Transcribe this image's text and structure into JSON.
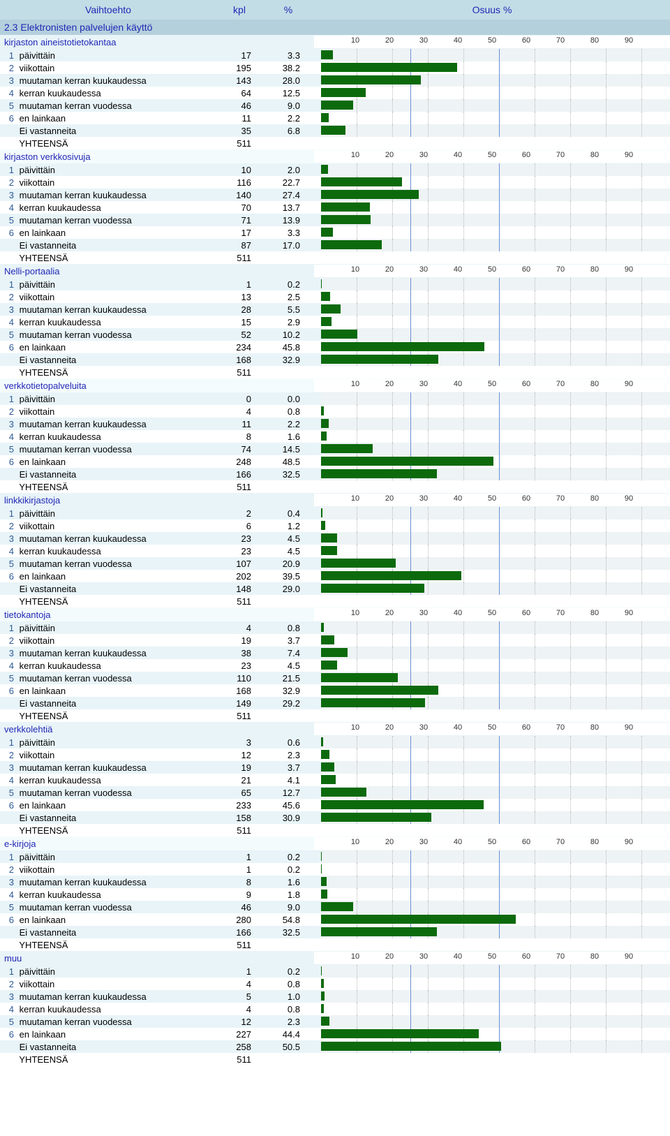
{
  "columns": {
    "option": "Vaihtoehto",
    "count": "kpl",
    "percent": "%",
    "share": "Osuus %"
  },
  "section_title": "2.3 Elektronisten palvelujen käyttö",
  "row_labels": [
    "päivittäin",
    "viikottain",
    "muutaman kerran kuukaudessa",
    "kerran kuukaudessa",
    "muutaman kerran vuodessa",
    "en lainkaan",
    "Ei vastanneita",
    "YHTEENSÄ"
  ],
  "axis_ticks": [
    10,
    20,
    30,
    40,
    50,
    60,
    70,
    80,
    90
  ],
  "axis_max": 100,
  "chart_style": {
    "bar_color": "#0c6a0c",
    "grid_dotted": "#bcbcbc",
    "grid_solid": "#6a8ed6",
    "even_row_bg": "#e8f4f8",
    "odd_row_bg": "#ffffff",
    "chart_even_bg": "#eef3f5",
    "section_bg": "#b4d0dd",
    "header_bg": "#c3dde6",
    "accent_text": "#2128b5"
  },
  "groups": [
    {
      "title": "kirjaston aineistotietokantaa",
      "rows": [
        {
          "n": "1",
          "kpl": 17,
          "pct": "3.3"
        },
        {
          "n": "2",
          "kpl": 195,
          "pct": "38.2"
        },
        {
          "n": "3",
          "kpl": 143,
          "pct": "28.0"
        },
        {
          "n": "4",
          "kpl": 64,
          "pct": "12.5"
        },
        {
          "n": "5",
          "kpl": 46,
          "pct": "9.0"
        },
        {
          "n": "6",
          "kpl": 11,
          "pct": "2.2"
        },
        {
          "n": "",
          "kpl": 35,
          "pct": "6.8"
        },
        {
          "n": "",
          "kpl": 511,
          "pct": ""
        }
      ]
    },
    {
      "title": "kirjaston verkkosivuja",
      "rows": [
        {
          "n": "1",
          "kpl": 10,
          "pct": "2.0"
        },
        {
          "n": "2",
          "kpl": 116,
          "pct": "22.7"
        },
        {
          "n": "3",
          "kpl": 140,
          "pct": "27.4"
        },
        {
          "n": "4",
          "kpl": 70,
          "pct": "13.7"
        },
        {
          "n": "5",
          "kpl": 71,
          "pct": "13.9"
        },
        {
          "n": "6",
          "kpl": 17,
          "pct": "3.3"
        },
        {
          "n": "",
          "kpl": 87,
          "pct": "17.0"
        },
        {
          "n": "",
          "kpl": 511,
          "pct": ""
        }
      ]
    },
    {
      "title": "Nelli-portaalia",
      "rows": [
        {
          "n": "1",
          "kpl": 1,
          "pct": "0.2"
        },
        {
          "n": "2",
          "kpl": 13,
          "pct": "2.5"
        },
        {
          "n": "3",
          "kpl": 28,
          "pct": "5.5"
        },
        {
          "n": "4",
          "kpl": 15,
          "pct": "2.9"
        },
        {
          "n": "5",
          "kpl": 52,
          "pct": "10.2"
        },
        {
          "n": "6",
          "kpl": 234,
          "pct": "45.8"
        },
        {
          "n": "",
          "kpl": 168,
          "pct": "32.9"
        },
        {
          "n": "",
          "kpl": 511,
          "pct": ""
        }
      ]
    },
    {
      "title": "verkkotietopalveluita",
      "rows": [
        {
          "n": "1",
          "kpl": 0,
          "pct": "0.0"
        },
        {
          "n": "2",
          "kpl": 4,
          "pct": "0.8"
        },
        {
          "n": "3",
          "kpl": 11,
          "pct": "2.2"
        },
        {
          "n": "4",
          "kpl": 8,
          "pct": "1.6"
        },
        {
          "n": "5",
          "kpl": 74,
          "pct": "14.5"
        },
        {
          "n": "6",
          "kpl": 248,
          "pct": "48.5"
        },
        {
          "n": "",
          "kpl": 166,
          "pct": "32.5"
        },
        {
          "n": "",
          "kpl": 511,
          "pct": ""
        }
      ]
    },
    {
      "title": "linkkikirjastoja",
      "rows": [
        {
          "n": "1",
          "kpl": 2,
          "pct": "0.4"
        },
        {
          "n": "2",
          "kpl": 6,
          "pct": "1.2"
        },
        {
          "n": "3",
          "kpl": 23,
          "pct": "4.5"
        },
        {
          "n": "4",
          "kpl": 23,
          "pct": "4.5"
        },
        {
          "n": "5",
          "kpl": 107,
          "pct": "20.9"
        },
        {
          "n": "6",
          "kpl": 202,
          "pct": "39.5"
        },
        {
          "n": "",
          "kpl": 148,
          "pct": "29.0"
        },
        {
          "n": "",
          "kpl": 511,
          "pct": ""
        }
      ]
    },
    {
      "title": "tietokantoja",
      "rows": [
        {
          "n": "1",
          "kpl": 4,
          "pct": "0.8"
        },
        {
          "n": "2",
          "kpl": 19,
          "pct": "3.7"
        },
        {
          "n": "3",
          "kpl": 38,
          "pct": "7.4"
        },
        {
          "n": "4",
          "kpl": 23,
          "pct": "4.5"
        },
        {
          "n": "5",
          "kpl": 110,
          "pct": "21.5"
        },
        {
          "n": "6",
          "kpl": 168,
          "pct": "32.9"
        },
        {
          "n": "",
          "kpl": 149,
          "pct": "29.2"
        },
        {
          "n": "",
          "kpl": 511,
          "pct": ""
        }
      ]
    },
    {
      "title": "verkkolehtiä",
      "rows": [
        {
          "n": "1",
          "kpl": 3,
          "pct": "0.6"
        },
        {
          "n": "2",
          "kpl": 12,
          "pct": "2.3"
        },
        {
          "n": "3",
          "kpl": 19,
          "pct": "3.7"
        },
        {
          "n": "4",
          "kpl": 21,
          "pct": "4.1"
        },
        {
          "n": "5",
          "kpl": 65,
          "pct": "12.7"
        },
        {
          "n": "6",
          "kpl": 233,
          "pct": "45.6"
        },
        {
          "n": "",
          "kpl": 158,
          "pct": "30.9"
        },
        {
          "n": "",
          "kpl": 511,
          "pct": ""
        }
      ]
    },
    {
      "title": "e-kirjoja",
      "rows": [
        {
          "n": "1",
          "kpl": 1,
          "pct": "0.2"
        },
        {
          "n": "2",
          "kpl": 1,
          "pct": "0.2"
        },
        {
          "n": "3",
          "kpl": 8,
          "pct": "1.6"
        },
        {
          "n": "4",
          "kpl": 9,
          "pct": "1.8"
        },
        {
          "n": "5",
          "kpl": 46,
          "pct": "9.0"
        },
        {
          "n": "6",
          "kpl": 280,
          "pct": "54.8"
        },
        {
          "n": "",
          "kpl": 166,
          "pct": "32.5"
        },
        {
          "n": "",
          "kpl": 511,
          "pct": ""
        }
      ]
    },
    {
      "title": "muu",
      "rows": [
        {
          "n": "1",
          "kpl": 1,
          "pct": "0.2"
        },
        {
          "n": "2",
          "kpl": 4,
          "pct": "0.8"
        },
        {
          "n": "3",
          "kpl": 5,
          "pct": "1.0"
        },
        {
          "n": "4",
          "kpl": 4,
          "pct": "0.8"
        },
        {
          "n": "5",
          "kpl": 12,
          "pct": "2.3"
        },
        {
          "n": "6",
          "kpl": 227,
          "pct": "44.4"
        },
        {
          "n": "",
          "kpl": 258,
          "pct": "50.5"
        },
        {
          "n": "",
          "kpl": 511,
          "pct": ""
        }
      ]
    }
  ]
}
